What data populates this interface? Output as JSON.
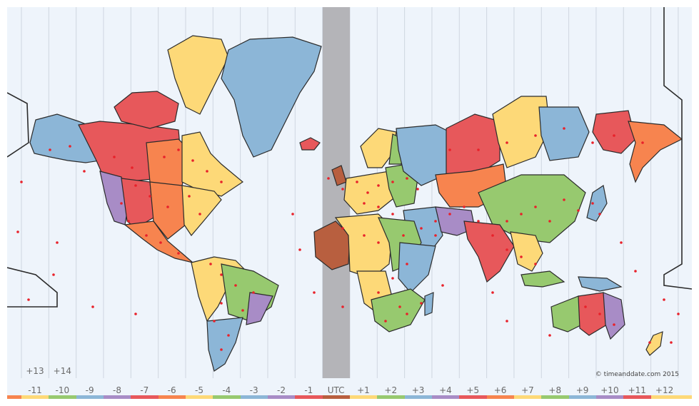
{
  "map": {
    "copyright": "© timeanddate.com 2015",
    "utc_label": "UTC",
    "zone_labels": [
      "-11",
      "-10",
      "-9",
      "-8",
      "-7",
      "-6",
      "-5",
      "-4",
      "-3",
      "-2",
      "-1",
      "UTC",
      "+1",
      "+2",
      "+3",
      "+4",
      "+5",
      "+6",
      "+7",
      "+8",
      "+9",
      "+10",
      "+11",
      "+12"
    ],
    "extra_labels": [
      {
        "text": "+13",
        "zone": "-11"
      },
      {
        "text": "+14",
        "zone": "-10"
      }
    ],
    "zone_colors": [
      "#fdd978",
      "#97c96f",
      "#8cb6d7",
      "#a88cc6",
      "#e7585b",
      "#f7844f",
      "#fdd978",
      "#97c96f",
      "#8cb6d7",
      "#a88cc6",
      "#e7585b",
      "#b85f3f",
      "#fdd978",
      "#97c96f",
      "#8cb6d7",
      "#a88cc6",
      "#e7585b",
      "#f7844f",
      "#fdd978",
      "#97c96f",
      "#8cb6d7",
      "#a88cc6",
      "#e7585b",
      "#fdd978"
    ],
    "edge_colors": {
      "left": "#f7844f",
      "right": "#fdd978"
    },
    "colors": {
      "ocean": "#eef4fb",
      "gridline": "#cfd6e0",
      "utc_band": "#b4b4b8",
      "land_outline": "#2b2b2b",
      "city_dot": "#e8212a"
    }
  }
}
